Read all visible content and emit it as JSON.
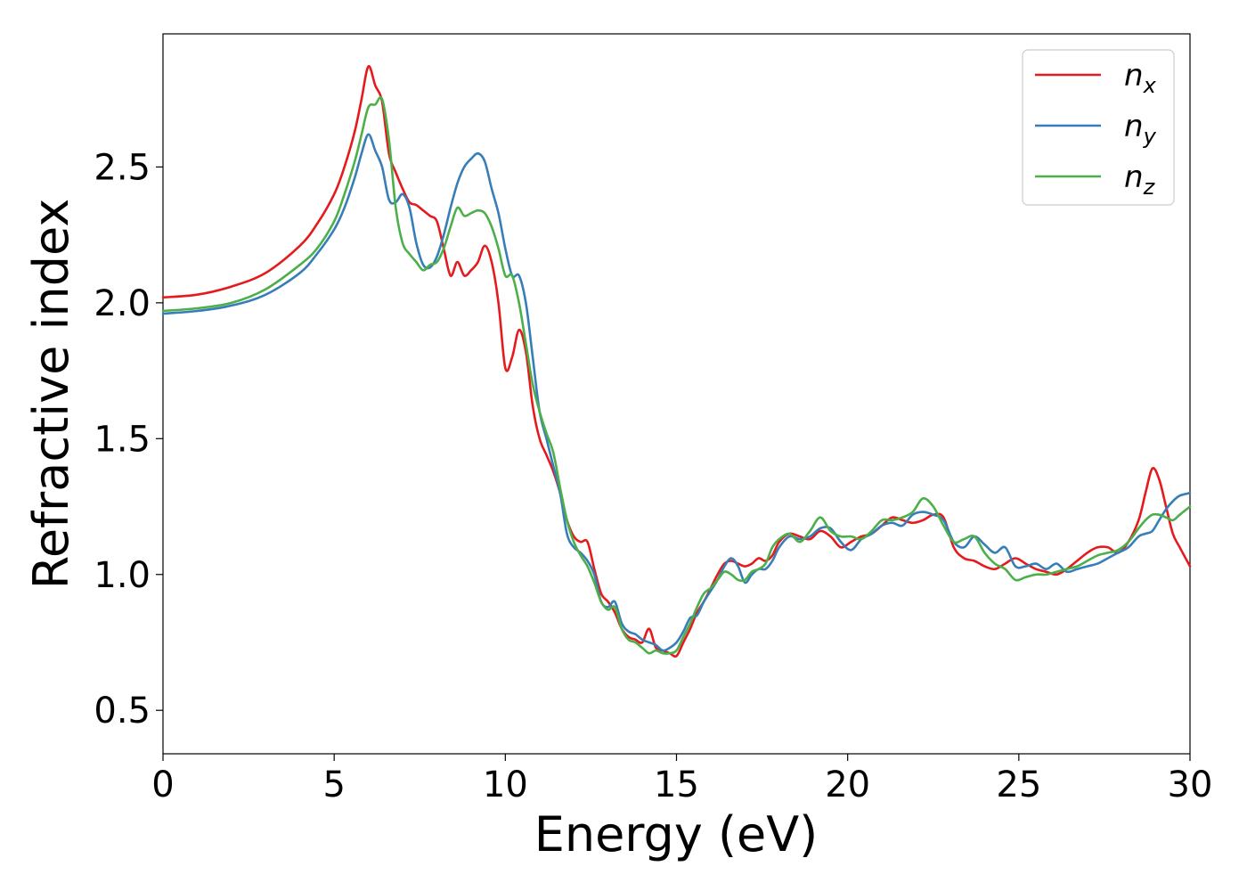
{
  "chart_data": {
    "type": "line",
    "xlabel": "Energy (eV)",
    "ylabel": "Refractive index",
    "xlim": [
      0,
      30
    ],
    "ylim": [
      0.34,
      2.99
    ],
    "xticks": [
      0,
      5,
      10,
      15,
      20,
      25,
      30
    ],
    "xtick_labels": [
      "0",
      "5",
      "10",
      "15",
      "20",
      "25",
      "30"
    ],
    "yticks": [
      0.5,
      1.0,
      1.5,
      2.0,
      2.5
    ],
    "ytick_labels": [
      "0.5",
      "1.0",
      "1.5",
      "2.0",
      "2.5"
    ],
    "grid": false,
    "legend_position": "top-right",
    "series": [
      {
        "name": "n",
        "subscript": "x",
        "color": "#e41a1c",
        "x": [
          0,
          1,
          2,
          3,
          4,
          4.5,
          5,
          5.3,
          5.6,
          5.8,
          6.0,
          6.2,
          6.4,
          6.6,
          6.8,
          7.0,
          7.2,
          7.4,
          7.6,
          7.8,
          8.0,
          8.2,
          8.4,
          8.6,
          8.8,
          9.0,
          9.2,
          9.4,
          9.6,
          9.8,
          10.0,
          10.2,
          10.4,
          10.6,
          10.8,
          11.0,
          11.2,
          11.4,
          11.6,
          11.8,
          12.0,
          12.2,
          12.4,
          12.6,
          12.8,
          13.0,
          13.2,
          13.4,
          13.6,
          13.8,
          14.0,
          14.2,
          14.4,
          14.6,
          14.8,
          15.0,
          15.2,
          15.4,
          15.6,
          15.8,
          16.0,
          16.2,
          16.4,
          16.6,
          16.8,
          17.0,
          17.2,
          17.4,
          17.6,
          17.8,
          18.0,
          18.3,
          18.6,
          18.9,
          19.2,
          19.5,
          19.8,
          20.1,
          20.4,
          20.7,
          21.0,
          21.3,
          21.6,
          21.9,
          22.2,
          22.5,
          22.8,
          23.1,
          23.4,
          23.7,
          24.0,
          24.3,
          24.6,
          24.9,
          25.2,
          25.5,
          25.8,
          26.1,
          26.4,
          26.7,
          27.0,
          27.3,
          27.6,
          27.9,
          28.2,
          28.5,
          28.7,
          28.9,
          29.1,
          29.3,
          29.5,
          29.7,
          30.0
        ],
        "values": [
          2.02,
          2.03,
          2.06,
          2.11,
          2.21,
          2.29,
          2.4,
          2.5,
          2.63,
          2.75,
          2.87,
          2.8,
          2.74,
          2.55,
          2.48,
          2.42,
          2.37,
          2.36,
          2.34,
          2.32,
          2.3,
          2.2,
          2.1,
          2.15,
          2.1,
          2.12,
          2.15,
          2.21,
          2.15,
          2.0,
          1.76,
          1.8,
          1.9,
          1.82,
          1.62,
          1.5,
          1.44,
          1.38,
          1.3,
          1.2,
          1.14,
          1.12,
          1.12,
          1.02,
          0.93,
          0.9,
          0.86,
          0.8,
          0.77,
          0.76,
          0.75,
          0.8,
          0.73,
          0.72,
          0.71,
          0.7,
          0.75,
          0.8,
          0.86,
          0.9,
          0.95,
          1.0,
          1.04,
          1.05,
          1.04,
          1.03,
          1.04,
          1.06,
          1.05,
          1.07,
          1.12,
          1.15,
          1.14,
          1.13,
          1.16,
          1.14,
          1.1,
          1.12,
          1.14,
          1.15,
          1.18,
          1.21,
          1.2,
          1.19,
          1.2,
          1.22,
          1.21,
          1.1,
          1.06,
          1.05,
          1.03,
          1.02,
          1.04,
          1.06,
          1.04,
          1.02,
          1.01,
          1.0,
          1.02,
          1.05,
          1.08,
          1.1,
          1.1,
          1.08,
          1.12,
          1.2,
          1.3,
          1.39,
          1.35,
          1.25,
          1.15,
          1.1,
          1.03
        ]
      },
      {
        "name": "n",
        "subscript": "y",
        "color": "#377eb8",
        "x": [
          0,
          1,
          2,
          3,
          4,
          4.5,
          5,
          5.3,
          5.6,
          5.8,
          6.0,
          6.2,
          6.4,
          6.6,
          6.8,
          7.0,
          7.2,
          7.4,
          7.6,
          7.8,
          8.0,
          8.2,
          8.4,
          8.6,
          8.8,
          9.0,
          9.2,
          9.4,
          9.6,
          9.8,
          10.0,
          10.2,
          10.4,
          10.6,
          10.8,
          11.0,
          11.2,
          11.4,
          11.6,
          11.8,
          12.0,
          12.2,
          12.4,
          12.6,
          12.8,
          13.0,
          13.2,
          13.4,
          13.6,
          13.8,
          14.0,
          14.2,
          14.4,
          14.6,
          14.8,
          15.0,
          15.2,
          15.4,
          15.6,
          15.8,
          16.0,
          16.2,
          16.4,
          16.6,
          16.8,
          17.0,
          17.2,
          17.4,
          17.6,
          17.8,
          18.0,
          18.3,
          18.6,
          18.9,
          19.2,
          19.5,
          19.8,
          20.1,
          20.4,
          20.7,
          21.0,
          21.3,
          21.6,
          21.9,
          22.2,
          22.5,
          22.8,
          23.1,
          23.4,
          23.7,
          24.0,
          24.3,
          24.6,
          24.9,
          25.2,
          25.5,
          25.8,
          26.1,
          26.4,
          26.7,
          27.0,
          27.3,
          27.6,
          27.9,
          28.2,
          28.5,
          28.7,
          28.9,
          29.1,
          29.3,
          29.5,
          29.7,
          30.0
        ],
        "values": [
          1.96,
          1.97,
          1.99,
          2.03,
          2.11,
          2.18,
          2.27,
          2.35,
          2.46,
          2.55,
          2.62,
          2.56,
          2.5,
          2.38,
          2.37,
          2.4,
          2.35,
          2.22,
          2.14,
          2.13,
          2.17,
          2.25,
          2.35,
          2.44,
          2.5,
          2.53,
          2.55,
          2.52,
          2.42,
          2.33,
          2.2,
          2.1,
          2.1,
          2.0,
          1.8,
          1.6,
          1.5,
          1.4,
          1.3,
          1.15,
          1.1,
          1.08,
          1.05,
          1.0,
          0.9,
          0.88,
          0.9,
          0.82,
          0.79,
          0.78,
          0.76,
          0.75,
          0.74,
          0.72,
          0.73,
          0.75,
          0.79,
          0.84,
          0.85,
          0.9,
          0.94,
          0.98,
          1.03,
          1.06,
          1.03,
          0.97,
          1.0,
          1.02,
          1.02,
          1.05,
          1.1,
          1.14,
          1.13,
          1.14,
          1.17,
          1.17,
          1.12,
          1.09,
          1.13,
          1.15,
          1.18,
          1.19,
          1.18,
          1.22,
          1.23,
          1.22,
          1.2,
          1.12,
          1.1,
          1.14,
          1.11,
          1.08,
          1.1,
          1.03,
          1.03,
          1.04,
          1.02,
          1.04,
          1.01,
          1.02,
          1.03,
          1.04,
          1.06,
          1.08,
          1.1,
          1.14,
          1.15,
          1.16,
          1.2,
          1.24,
          1.27,
          1.29,
          1.3
        ]
      },
      {
        "name": "n",
        "subscript": "z",
        "color": "#4daf4a",
        "x": [
          0,
          1,
          2,
          3,
          4,
          4.5,
          5,
          5.3,
          5.6,
          5.8,
          6.0,
          6.2,
          6.4,
          6.6,
          6.8,
          7.0,
          7.2,
          7.4,
          7.6,
          7.8,
          8.0,
          8.2,
          8.4,
          8.6,
          8.8,
          9.0,
          9.2,
          9.4,
          9.6,
          9.8,
          10.0,
          10.2,
          10.4,
          10.6,
          10.8,
          11.0,
          11.2,
          11.4,
          11.6,
          11.8,
          12.0,
          12.2,
          12.4,
          12.6,
          12.8,
          13.0,
          13.2,
          13.4,
          13.6,
          13.8,
          14.0,
          14.2,
          14.4,
          14.6,
          14.8,
          15.0,
          15.2,
          15.4,
          15.6,
          15.8,
          16.0,
          16.2,
          16.4,
          16.6,
          16.8,
          17.0,
          17.2,
          17.4,
          17.6,
          17.8,
          18.0,
          18.3,
          18.6,
          18.9,
          19.2,
          19.5,
          19.8,
          20.1,
          20.4,
          20.7,
          21.0,
          21.3,
          21.6,
          21.9,
          22.2,
          22.5,
          22.8,
          23.1,
          23.4,
          23.7,
          24.0,
          24.3,
          24.6,
          24.9,
          25.2,
          25.5,
          25.8,
          26.1,
          26.4,
          26.7,
          27.0,
          27.3,
          27.6,
          27.9,
          28.2,
          28.5,
          28.7,
          28.9,
          29.1,
          29.3,
          29.5,
          29.7,
          30.0
        ],
        "values": [
          1.97,
          1.98,
          2.0,
          2.05,
          2.14,
          2.2,
          2.3,
          2.4,
          2.52,
          2.62,
          2.72,
          2.73,
          2.75,
          2.6,
          2.35,
          2.22,
          2.18,
          2.15,
          2.12,
          2.14,
          2.15,
          2.2,
          2.28,
          2.35,
          2.32,
          2.33,
          2.34,
          2.33,
          2.28,
          2.2,
          2.1,
          2.1,
          2.0,
          1.85,
          1.7,
          1.6,
          1.52,
          1.45,
          1.32,
          1.2,
          1.12,
          1.07,
          1.03,
          0.97,
          0.9,
          0.87,
          0.88,
          0.8,
          0.76,
          0.75,
          0.73,
          0.71,
          0.72,
          0.71,
          0.71,
          0.72,
          0.77,
          0.82,
          0.88,
          0.93,
          0.95,
          0.98,
          1.01,
          1.0,
          0.98,
          0.98,
          1.01,
          1.02,
          1.04,
          1.1,
          1.13,
          1.15,
          1.12,
          1.16,
          1.21,
          1.16,
          1.14,
          1.14,
          1.13,
          1.16,
          1.2,
          1.2,
          1.21,
          1.23,
          1.28,
          1.25,
          1.18,
          1.12,
          1.13,
          1.14,
          1.08,
          1.04,
          1.02,
          0.98,
          0.99,
          1.0,
          1.0,
          1.01,
          1.02,
          1.03,
          1.05,
          1.07,
          1.08,
          1.09,
          1.12,
          1.17,
          1.2,
          1.22,
          1.22,
          1.21,
          1.2,
          1.22,
          1.25
        ]
      }
    ]
  }
}
